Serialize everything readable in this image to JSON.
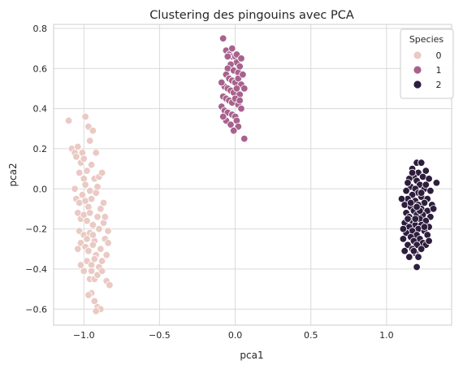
{
  "chart_data": {
    "type": "scatter",
    "title": "Clustering des pingouins avec PCA",
    "xlabel": "pca1",
    "ylabel": "pca2",
    "xlim": [
      -1.2,
      1.43
    ],
    "ylim": [
      -0.68,
      0.82
    ],
    "xticks": [
      -1.0,
      -0.5,
      0.0,
      0.5,
      1.0
    ],
    "xtick_labels": [
      "−1.0",
      "−0.5",
      "0.0",
      "0.5",
      "1.0"
    ],
    "yticks": [
      -0.6,
      -0.4,
      -0.2,
      0.0,
      0.2,
      0.4,
      0.6,
      0.8
    ],
    "ytick_labels": [
      "−0.6",
      "−0.4",
      "−0.2",
      "0.0",
      "0.2",
      "0.4",
      "0.6",
      "0.8"
    ],
    "grid": true,
    "legend": {
      "title": "Species",
      "placement": "top-right"
    },
    "series": [
      {
        "name": "0",
        "color": "#eacac4",
        "points": [
          [
            -1.1,
            0.34
          ],
          [
            -1.08,
            0.2
          ],
          [
            -1.06,
            0.18
          ],
          [
            -1.05,
            0.16
          ],
          [
            -1.04,
            0.21
          ],
          [
            -1.02,
            0.13
          ],
          [
            -1.01,
            0.18
          ],
          [
            -1.0,
            0.15
          ],
          [
            -0.99,
            0.36
          ],
          [
            -0.97,
            0.31
          ],
          [
            -0.96,
            0.24
          ],
          [
            -0.94,
            0.29
          ],
          [
            -0.92,
            0.18
          ],
          [
            -1.03,
            0.08
          ],
          [
            -1.0,
            0.05
          ],
          [
            -0.98,
            0.09
          ],
          [
            -0.99,
            0.02
          ],
          [
            -0.96,
            -0.01
          ],
          [
            -0.93,
            0.05
          ],
          [
            -0.9,
            0.06
          ],
          [
            -0.88,
            0.08
          ],
          [
            -1.05,
            -0.05
          ],
          [
            -1.03,
            -0.07
          ],
          [
            -1.01,
            -0.03
          ],
          [
            -0.99,
            -0.06
          ],
          [
            -0.97,
            -0.09
          ],
          [
            -0.95,
            -0.05
          ],
          [
            -0.92,
            -0.02
          ],
          [
            -1.04,
            -0.12
          ],
          [
            -1.02,
            -0.15
          ],
          [
            -1.0,
            -0.13
          ],
          [
            -0.98,
            -0.16
          ],
          [
            -0.96,
            -0.12
          ],
          [
            -0.94,
            -0.18
          ],
          [
            -0.91,
            -0.14
          ],
          [
            -0.89,
            -0.1
          ],
          [
            -1.03,
            -0.21
          ],
          [
            -1.0,
            -0.23
          ],
          [
            -0.98,
            -0.25
          ],
          [
            -0.96,
            -0.22
          ],
          [
            -0.93,
            -0.26
          ],
          [
            -0.9,
            -0.2
          ],
          [
            -0.87,
            -0.17
          ],
          [
            -1.02,
            -0.27
          ],
          [
            -0.99,
            -0.29
          ],
          [
            -0.97,
            -0.31
          ],
          [
            -0.94,
            -0.28
          ],
          [
            -0.92,
            -0.33
          ],
          [
            -0.89,
            -0.3
          ],
          [
            -0.86,
            -0.25
          ],
          [
            -0.84,
            -0.27
          ],
          [
            -0.98,
            -0.36
          ],
          [
            -0.95,
            -0.38
          ],
          [
            -0.93,
            -0.35
          ],
          [
            -0.9,
            -0.39
          ],
          [
            -0.88,
            -0.36
          ],
          [
            -0.85,
            -0.33
          ],
          [
            -0.96,
            -0.45
          ],
          [
            -0.93,
            -0.45
          ],
          [
            -0.91,
            -0.43
          ],
          [
            -0.88,
            -0.41
          ],
          [
            -0.85,
            -0.46
          ],
          [
            -0.83,
            -0.48
          ],
          [
            -0.95,
            -0.52
          ],
          [
            -0.93,
            -0.56
          ],
          [
            -0.91,
            -0.59
          ],
          [
            -0.89,
            -0.6
          ],
          [
            -0.92,
            -0.61
          ],
          [
            -0.97,
            -0.53
          ],
          [
            -1.0,
            -0.41
          ],
          [
            -1.02,
            -0.38
          ],
          [
            -1.04,
            -0.3
          ],
          [
            -0.95,
            0.12
          ],
          [
            -0.91,
            0.01
          ],
          [
            -0.87,
            -0.07
          ],
          [
            -0.86,
            -0.14
          ],
          [
            -0.84,
            -0.21
          ],
          [
            -0.94,
            -0.23
          ],
          [
            -1.06,
            0.0
          ],
          [
            -0.95,
            -0.41
          ]
        ]
      },
      {
        "name": "1",
        "color": "#a8628e",
        "points": [
          [
            -0.08,
            0.75
          ],
          [
            -0.06,
            0.69
          ],
          [
            -0.04,
            0.67
          ],
          [
            -0.02,
            0.66
          ],
          [
            0.0,
            0.66
          ],
          [
            0.01,
            0.63
          ],
          [
            -0.03,
            0.62
          ],
          [
            -0.05,
            0.6
          ],
          [
            -0.01,
            0.59
          ],
          [
            0.02,
            0.58
          ],
          [
            0.03,
            0.61
          ],
          [
            -0.06,
            0.57
          ],
          [
            -0.04,
            0.55
          ],
          [
            -0.02,
            0.54
          ],
          [
            0.0,
            0.53
          ],
          [
            0.02,
            0.55
          ],
          [
            0.04,
            0.52
          ],
          [
            -0.07,
            0.51
          ],
          [
            -0.05,
            0.5
          ],
          [
            -0.03,
            0.49
          ],
          [
            -0.01,
            0.48
          ],
          [
            0.01,
            0.5
          ],
          [
            0.03,
            0.47
          ],
          [
            -0.08,
            0.46
          ],
          [
            -0.06,
            0.45
          ],
          [
            -0.04,
            0.44
          ],
          [
            -0.02,
            0.43
          ],
          [
            0.0,
            0.45
          ],
          [
            0.02,
            0.42
          ],
          [
            0.04,
            0.4
          ],
          [
            -0.09,
            0.41
          ],
          [
            -0.07,
            0.39
          ],
          [
            -0.05,
            0.38
          ],
          [
            -0.02,
            0.37
          ],
          [
            0.0,
            0.36
          ],
          [
            0.01,
            0.34
          ],
          [
            -0.06,
            0.34
          ],
          [
            -0.08,
            0.36
          ],
          [
            -0.03,
            0.32
          ],
          [
            0.02,
            0.31
          ],
          [
            -0.01,
            0.29
          ],
          [
            0.06,
            0.25
          ],
          [
            0.05,
            0.57
          ],
          [
            0.06,
            0.5
          ],
          [
            -0.09,
            0.53
          ],
          [
            0.01,
            0.67
          ],
          [
            -0.02,
            0.7
          ],
          [
            0.04,
            0.65
          ],
          [
            -0.05,
            0.66
          ],
          [
            0.03,
            0.44
          ]
        ]
      },
      {
        "name": "2",
        "color": "#2d1e3e",
        "points": [
          [
            1.2,
            0.13
          ],
          [
            1.23,
            0.13
          ],
          [
            1.17,
            0.1
          ],
          [
            1.26,
            0.09
          ],
          [
            1.21,
            0.08
          ],
          [
            1.18,
            0.06
          ],
          [
            1.24,
            0.06
          ],
          [
            1.15,
            0.05
          ],
          [
            1.28,
            0.05
          ],
          [
            1.2,
            0.04
          ],
          [
            1.22,
            0.02
          ],
          [
            1.33,
            0.03
          ],
          [
            1.16,
            0.01
          ],
          [
            1.19,
            0.0
          ],
          [
            1.25,
            0.0
          ],
          [
            1.13,
            -0.01
          ],
          [
            1.29,
            -0.01
          ],
          [
            1.21,
            -0.02
          ],
          [
            1.17,
            -0.03
          ],
          [
            1.23,
            -0.04
          ],
          [
            1.14,
            -0.05
          ],
          [
            1.27,
            -0.05
          ],
          [
            1.19,
            -0.06
          ],
          [
            1.25,
            -0.07
          ],
          [
            1.12,
            -0.08
          ],
          [
            1.21,
            -0.08
          ],
          [
            1.3,
            -0.08
          ],
          [
            1.16,
            -0.09
          ],
          [
            1.23,
            -0.1
          ],
          [
            1.18,
            -0.11
          ],
          [
            1.27,
            -0.11
          ],
          [
            1.13,
            -0.12
          ],
          [
            1.2,
            -0.13
          ],
          [
            1.24,
            -0.13
          ],
          [
            1.15,
            -0.14
          ],
          [
            1.29,
            -0.14
          ],
          [
            1.22,
            -0.15
          ],
          [
            1.17,
            -0.16
          ],
          [
            1.26,
            -0.16
          ],
          [
            1.12,
            -0.17
          ],
          [
            1.19,
            -0.18
          ],
          [
            1.23,
            -0.18
          ],
          [
            1.15,
            -0.19
          ],
          [
            1.28,
            -0.19
          ],
          [
            1.21,
            -0.2
          ],
          [
            1.17,
            -0.21
          ],
          [
            1.25,
            -0.21
          ],
          [
            1.13,
            -0.22
          ],
          [
            1.2,
            -0.23
          ],
          [
            1.27,
            -0.23
          ],
          [
            1.16,
            -0.24
          ],
          [
            1.22,
            -0.25
          ],
          [
            1.11,
            -0.25
          ],
          [
            1.18,
            -0.26
          ],
          [
            1.24,
            -0.27
          ],
          [
            1.14,
            -0.28
          ],
          [
            1.2,
            -0.28
          ],
          [
            1.26,
            -0.28
          ],
          [
            1.17,
            -0.3
          ],
          [
            1.23,
            -0.3
          ],
          [
            1.12,
            -0.31
          ],
          [
            1.19,
            -0.32
          ],
          [
            1.15,
            -0.34
          ],
          [
            1.21,
            -0.34
          ],
          [
            1.18,
            -0.31
          ],
          [
            1.2,
            -0.39
          ],
          [
            1.14,
            0.03
          ],
          [
            1.31,
            -0.1
          ],
          [
            1.1,
            -0.05
          ],
          [
            1.26,
            0.02
          ],
          [
            1.16,
            -0.07
          ],
          [
            1.23,
            -0.02
          ],
          [
            1.19,
            -0.15
          ],
          [
            1.28,
            -0.26
          ],
          [
            1.11,
            -0.2
          ],
          [
            1.22,
            -0.11
          ],
          [
            1.14,
            -0.15
          ],
          [
            1.17,
            0.08
          ],
          [
            1.25,
            -0.19
          ],
          [
            1.2,
            -0.09
          ]
        ]
      }
    ]
  }
}
